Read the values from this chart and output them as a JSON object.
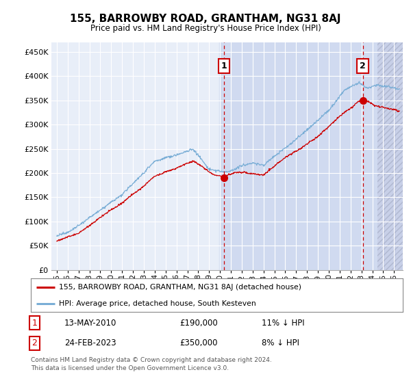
{
  "title": "155, BARROWBY ROAD, GRANTHAM, NG31 8AJ",
  "subtitle": "Price paid vs. HM Land Registry's House Price Index (HPI)",
  "ytick_vals": [
    0,
    50000,
    100000,
    150000,
    200000,
    250000,
    300000,
    350000,
    400000,
    450000
  ],
  "ylim": [
    0,
    470000
  ],
  "xlim_start": 1994.5,
  "xlim_end": 2026.8,
  "highlight_start": 2009.9,
  "hatch_start": 2024.5,
  "point1_x": 2010.36,
  "point1_y": 190000,
  "point1_label": "1",
  "point1_date": "13-MAY-2010",
  "point1_price": "£190,000",
  "point1_hpi": "11% ↓ HPI",
  "point2_x": 2023.12,
  "point2_y": 350000,
  "point2_label": "2",
  "point2_date": "24-FEB-2023",
  "point2_price": "£350,000",
  "point2_hpi": "8% ↓ HPI",
  "red_line_label": "155, BARROWBY ROAD, GRANTHAM, NG31 8AJ (detached house)",
  "blue_line_label": "HPI: Average price, detached house, South Kesteven",
  "footer": "Contains HM Land Registry data © Crown copyright and database right 2024.\nThis data is licensed under the Open Government Licence v3.0.",
  "plot_bg": "#e8eef8",
  "grid_color": "#ffffff",
  "highlight_color": "#d0daf0",
  "hatch_color": "#c8d0e8",
  "red_color": "#cc0000",
  "blue_color": "#7aaed6"
}
